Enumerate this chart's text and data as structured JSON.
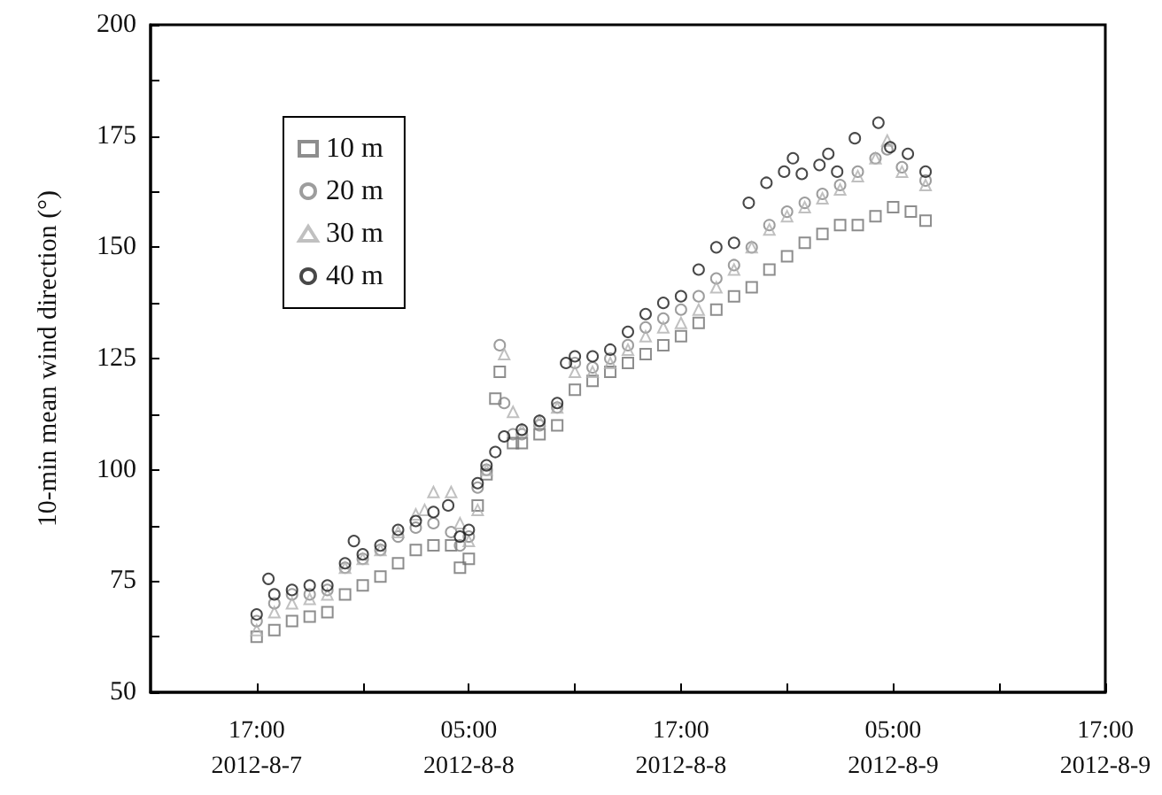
{
  "chart_data": {
    "type": "scatter",
    "ylabel": "10-min mean wind direction (°)",
    "xlim": [
      "2012-08-07T11:00",
      "2012-08-09T17:00"
    ],
    "xticks": [
      {
        "value": "2012-08-07T17:00",
        "label": "17:00\n2012-8-7"
      },
      {
        "value": "2012-08-07T23:00",
        "label": null
      },
      {
        "value": "2012-08-08T05:00",
        "label": "05:00\n2012-8-8"
      },
      {
        "value": "2012-08-08T11:00",
        "label": null
      },
      {
        "value": "2012-08-08T17:00",
        "label": "17:00\n2012-8-8"
      },
      {
        "value": "2012-08-08T23:00",
        "label": null
      },
      {
        "value": "2012-08-09T05:00",
        "label": "05:00\n2012-8-9"
      },
      {
        "value": "2012-08-09T11:00",
        "label": null
      },
      {
        "value": "2012-08-09T17:00",
        "label": "17:00\n2012-8-9"
      }
    ],
    "ylim": [
      50,
      200
    ],
    "yticks": [
      50,
      {
        "value": 62.5,
        "label": null
      },
      75,
      {
        "value": 87.5,
        "label": null
      },
      100,
      {
        "value": 112.5,
        "label": null
      },
      125,
      {
        "value": 137.5,
        "label": null
      },
      150,
      {
        "value": 162.5,
        "label": null
      },
      175,
      {
        "value": 187.5,
        "label": null
      },
      200
    ],
    "grid": false,
    "legend": "top left",
    "series": [
      {
        "name": "10 m",
        "color": "#707070",
        "marker": "square",
        "x": [
          "2012-08-07T17:00",
          "2012-08-07T18:00",
          "2012-08-07T19:00",
          "2012-08-07T20:00",
          "2012-08-07T21:00",
          "2012-08-07T22:00",
          "2012-08-07T23:00",
          "2012-08-08T00:00",
          "2012-08-08T01:00",
          "2012-08-08T02:00",
          "2012-08-08T03:00",
          "2012-08-08T04:00",
          "2012-08-08T04:30",
          "2012-08-08T05:00",
          "2012-08-08T05:30",
          "2012-08-08T06:00",
          "2012-08-08T06:30",
          "2012-08-08T06:45",
          "2012-08-08T07:30",
          "2012-08-08T08:00",
          "2012-08-08T09:00",
          "2012-08-08T10:00",
          "2012-08-08T11:00",
          "2012-08-08T12:00",
          "2012-08-08T13:00",
          "2012-08-08T14:00",
          "2012-08-08T15:00",
          "2012-08-08T16:00",
          "2012-08-08T17:00",
          "2012-08-08T18:00",
          "2012-08-08T19:00",
          "2012-08-08T20:00",
          "2012-08-08T21:00",
          "2012-08-08T22:00",
          "2012-08-08T23:00",
          "2012-08-09T00:00",
          "2012-08-09T01:00",
          "2012-08-09T02:00",
          "2012-08-09T03:00",
          "2012-08-09T04:00",
          "2012-08-09T05:00",
          "2012-08-09T06:00",
          "2012-08-09T06:50"
        ],
        "values": [
          62.5,
          64,
          66,
          67,
          68,
          72,
          74,
          76,
          79,
          82,
          83,
          83,
          78,
          80,
          92,
          99,
          116,
          122,
          106,
          106,
          108,
          110,
          118,
          120,
          122,
          124,
          126,
          128,
          130,
          133,
          136,
          139,
          141,
          145,
          148,
          151,
          153,
          155,
          155,
          157,
          159,
          158,
          156
        ]
      },
      {
        "name": "20 m",
        "color": "#858585",
        "marker": "circle",
        "x": [
          "2012-08-07T17:00",
          "2012-08-07T18:00",
          "2012-08-07T19:00",
          "2012-08-07T20:00",
          "2012-08-07T21:00",
          "2012-08-07T22:00",
          "2012-08-07T23:00",
          "2012-08-08T00:00",
          "2012-08-08T01:00",
          "2012-08-08T02:00",
          "2012-08-08T03:00",
          "2012-08-08T04:00",
          "2012-08-08T04:30",
          "2012-08-08T05:00",
          "2012-08-08T05:30",
          "2012-08-08T06:00",
          "2012-08-08T06:45",
          "2012-08-08T07:00",
          "2012-08-08T07:30",
          "2012-08-08T08:00",
          "2012-08-08T09:00",
          "2012-08-08T10:00",
          "2012-08-08T11:00",
          "2012-08-08T12:00",
          "2012-08-08T13:00",
          "2012-08-08T14:00",
          "2012-08-08T15:00",
          "2012-08-08T16:00",
          "2012-08-08T17:00",
          "2012-08-08T18:00",
          "2012-08-08T19:00",
          "2012-08-08T20:00",
          "2012-08-08T21:00",
          "2012-08-08T22:00",
          "2012-08-08T23:00",
          "2012-08-09T00:00",
          "2012-08-09T01:00",
          "2012-08-09T02:00",
          "2012-08-09T03:00",
          "2012-08-09T04:00",
          "2012-08-09T04:40",
          "2012-08-09T05:30",
          "2012-08-09T06:50"
        ],
        "values": [
          66,
          70,
          72,
          72,
          73,
          78,
          80,
          82,
          85,
          87,
          88,
          86,
          83,
          85,
          96,
          100,
          128,
          115,
          108,
          108,
          110,
          114,
          124,
          123,
          125,
          128,
          132,
          134,
          136,
          139,
          143,
          146,
          150,
          155,
          158,
          160,
          162,
          164,
          167,
          170,
          172,
          168,
          165
        ]
      },
      {
        "name": "30 m",
        "color": "#b0b0b0",
        "marker": "triangle",
        "x": [
          "2012-08-07T17:00",
          "2012-08-07T18:00",
          "2012-08-07T19:00",
          "2012-08-07T20:00",
          "2012-08-07T21:00",
          "2012-08-07T22:00",
          "2012-08-07T23:00",
          "2012-08-08T00:00",
          "2012-08-08T01:00",
          "2012-08-08T02:00",
          "2012-08-08T02:30",
          "2012-08-08T03:00",
          "2012-08-08T04:00",
          "2012-08-08T04:30",
          "2012-08-08T05:00",
          "2012-08-08T05:30",
          "2012-08-08T06:00",
          "2012-08-08T07:00",
          "2012-08-08T07:30",
          "2012-08-08T08:00",
          "2012-08-08T09:00",
          "2012-08-08T10:00",
          "2012-08-08T11:00",
          "2012-08-08T12:00",
          "2012-08-08T13:00",
          "2012-08-08T14:00",
          "2012-08-08T15:00",
          "2012-08-08T16:00",
          "2012-08-08T17:00",
          "2012-08-08T18:00",
          "2012-08-08T19:00",
          "2012-08-08T20:00",
          "2012-08-08T21:00",
          "2012-08-08T22:00",
          "2012-08-08T23:00",
          "2012-08-09T00:00",
          "2012-08-09T01:00",
          "2012-08-09T02:00",
          "2012-08-09T03:00",
          "2012-08-09T04:00",
          "2012-08-09T04:40",
          "2012-08-09T05:30",
          "2012-08-09T06:50"
        ],
        "values": [
          64,
          68,
          70,
          71,
          72,
          78,
          80,
          82,
          86,
          90,
          91,
          95,
          95,
          88,
          84,
          91,
          100,
          126,
          113,
          109,
          111,
          114,
          122,
          122,
          124,
          127,
          130,
          132,
          133,
          136,
          141,
          145,
          150,
          154,
          157,
          159,
          161,
          163,
          166,
          170,
          174,
          167,
          164
        ]
      },
      {
        "name": "40 m",
        "color": "#1a1a1a",
        "marker": "circle",
        "x": [
          "2012-08-07T17:00",
          "2012-08-07T17:40",
          "2012-08-07T18:00",
          "2012-08-07T19:00",
          "2012-08-07T20:00",
          "2012-08-07T21:00",
          "2012-08-07T22:00",
          "2012-08-07T22:30",
          "2012-08-07T23:00",
          "2012-08-08T00:00",
          "2012-08-08T01:00",
          "2012-08-08T02:00",
          "2012-08-08T03:00",
          "2012-08-08T03:50",
          "2012-08-08T04:30",
          "2012-08-08T05:00",
          "2012-08-08T05:30",
          "2012-08-08T06:00",
          "2012-08-08T06:30",
          "2012-08-08T07:00",
          "2012-08-08T08:00",
          "2012-08-08T09:00",
          "2012-08-08T10:00",
          "2012-08-08T10:30",
          "2012-08-08T11:00",
          "2012-08-08T12:00",
          "2012-08-08T13:00",
          "2012-08-08T14:00",
          "2012-08-08T15:00",
          "2012-08-08T16:00",
          "2012-08-08T17:00",
          "2012-08-08T18:00",
          "2012-08-08T19:00",
          "2012-08-08T20:00",
          "2012-08-08T20:50",
          "2012-08-08T21:50",
          "2012-08-08T22:50",
          "2012-08-08T23:20",
          "2012-08-08T23:50",
          "2012-08-09T00:50",
          "2012-08-09T01:20",
          "2012-08-09T01:50",
          "2012-08-09T02:50",
          "2012-08-09T04:10",
          "2012-08-09T04:50",
          "2012-08-09T05:50",
          "2012-08-09T06:50"
        ],
        "values": [
          67.5,
          75.5,
          72,
          73,
          74,
          74,
          79,
          84,
          81,
          83,
          86.5,
          88.5,
          90.5,
          92,
          85,
          86.5,
          97,
          101,
          104,
          107.5,
          109,
          111,
          115,
          124,
          125.5,
          125.5,
          127,
          131,
          135,
          137.5,
          139,
          145,
          150,
          151,
          160,
          164.5,
          167,
          170,
          166.5,
          168.5,
          171,
          167,
          174.5,
          178,
          172.5,
          171,
          167
        ]
      }
    ]
  }
}
